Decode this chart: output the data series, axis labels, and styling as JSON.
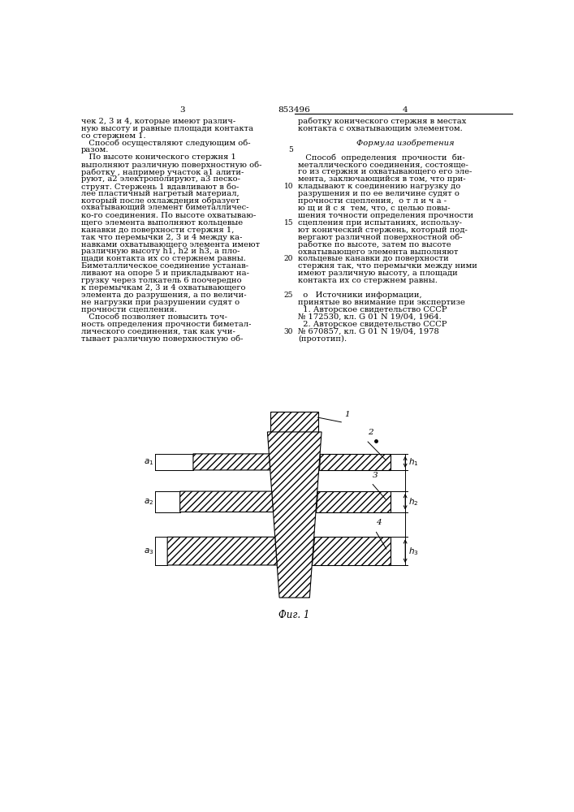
{
  "page_width": 7.07,
  "page_height": 10.0,
  "bg_color": "#ffffff",
  "text_color": "#000000",
  "patent_number": "853496",
  "page_left": "3",
  "page_right": "4",
  "left_col_lines": [
    "чек 2, 3 и 4, которые имеют различ-",
    "ную высоту и равные площади контакта",
    "со стержнем 1.",
    "   Способ осуществляют следующим об-",
    "разом.",
    "   По высоте конического стержня 1",
    "выполняют различную поверхностную об-",
    "работку , например участок a1 алити-",
    "руют, a2 электрополируют, a3 песко-",
    "струят. Стержень 1 вдавливают в бо-",
    "лее пластичный нагретый материал,",
    "который после охлаждения образует",
    "охватывающий элемент биметалличес-",
    "ко-го соединения. По высоте охватываю-",
    "щего элемента выполняют кольцевые",
    "канавки до поверхности стержня 1,",
    "так что перемычки 2, 3 и 4 между ка-",
    "навками охватывающего элемента имеют",
    "различную высоту h1, h2 и h3, а пло-",
    "щади контакта их со стержнем равны.",
    "Биметаллическое соединение устанав-",
    "ливают на опоре 5 и прикладывают на-",
    "грузку через толкатель 6 поочередно",
    "к перемычкам 2, 3 и 4 охватывающего",
    "элемента до разрушения, а по величи-",
    "не нагрузки при разрушении судят о",
    "прочности сцепления.",
    "   Способ позволяет повысить точ-",
    "ность определения прочности биметал-",
    "лического соединения, так как учи-",
    "тывает различную поверхностную об-"
  ],
  "right_col_lines": [
    "работку конического стержня в местах",
    "контакта с охватывающим элементом.",
    "",
    "Формула изобретения",
    "",
    "   Способ  определения  прочности  би-",
    "металлического соединения, состояще-",
    "го из стержня и охватывающего его эле-",
    "мента, заключающийся в том, что при-",
    "кладывают к соединению нагрузку до",
    "разрушения и по ее величине судят о",
    "прочности сцепления,  о т л и ч а -",
    "ю щ и й с я  тем, что, с целью повы-",
    "шения точности определения прочности",
    "сцепления при испытаниях, использу-",
    "ют конический стержень, который под-",
    "вергают различной поверхностной об-",
    "работке по высоте, затем по высоте",
    "охватывающего элемента выполняют",
    "кольцевые канавки до поверхности",
    "стержня так, что перемычки между ними",
    "имеют различную высоту, а площади",
    "контакта их со стержнем равны.",
    "",
    "  o   Источники информации,",
    "принятые во внимание при экспертизе",
    "  1. Авторское свидетельство СССР",
    "№ 172530, кл. G 01 N 19/04, 1964.",
    "  2. Авторское свидетельство СССР",
    "№ 670857, кл. G 01 N 19/04, 1978",
    "(прототип)."
  ],
  "line_numbers": [
    5,
    10,
    15,
    20,
    25,
    30
  ],
  "fig_caption": "Фиг. 1"
}
